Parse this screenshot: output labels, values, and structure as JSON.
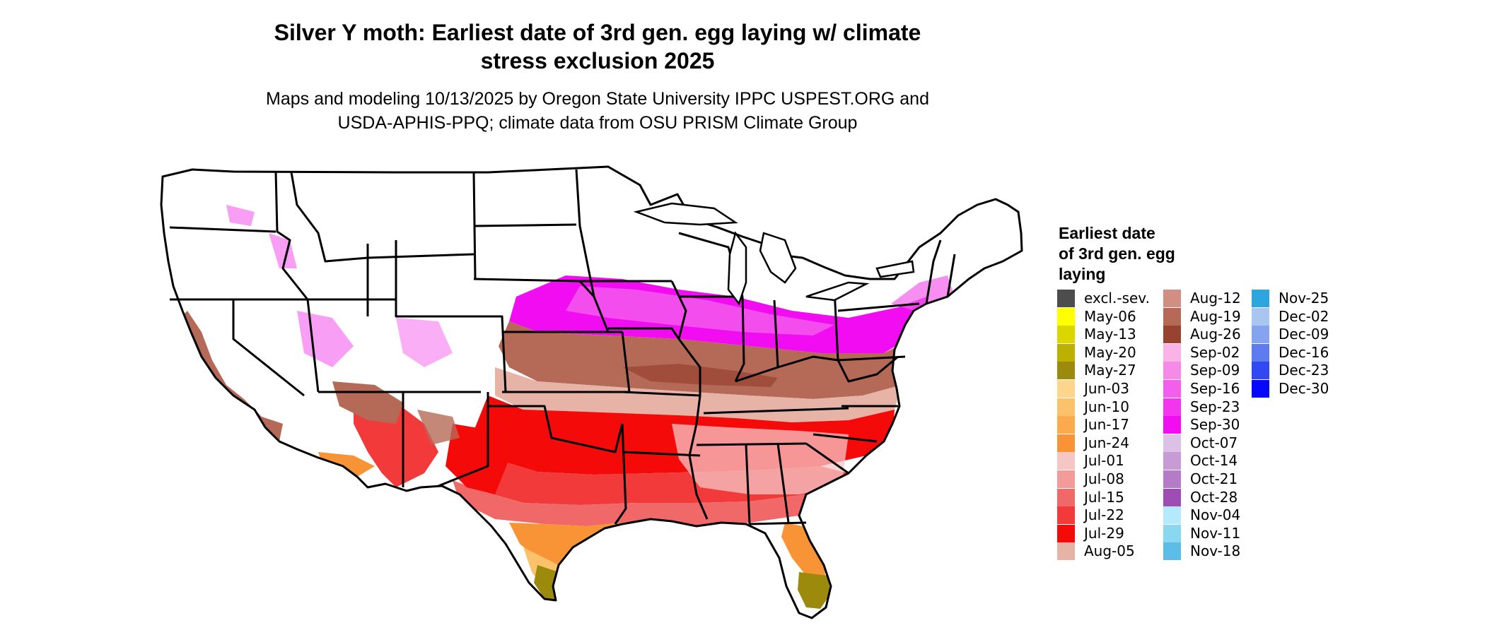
{
  "title_line1": "Silver Y moth: Earliest date of 3rd gen. egg laying w/ climate",
  "title_line2": "stress exclusion 2025",
  "subtitle_line1": "Maps and modeling 10/13/2025 by Oregon State University IPPC USPEST.ORG and",
  "subtitle_line2": "USDA-APHIS-PPQ; climate data from OSU PRISM Climate Group",
  "legend": {
    "title_line1": "Earliest date",
    "title_line2": "of 3rd gen. egg",
    "title_line3": "laying",
    "columns": [
      [
        {
          "label": "excl.-sev.",
          "color": "#4d4d4d"
        },
        {
          "label": "May-06",
          "color": "#ffff00"
        },
        {
          "label": "May-13",
          "color": "#dcd600"
        },
        {
          "label": "May-20",
          "color": "#bcb000"
        },
        {
          "label": "May-27",
          "color": "#9b8a0b"
        },
        {
          "label": "Jun-03",
          "color": "#fdd58c"
        },
        {
          "label": "Jun-10",
          "color": "#fcc16b"
        },
        {
          "label": "Jun-17",
          "color": "#fbab4d"
        },
        {
          "label": "Jun-24",
          "color": "#f99436"
        },
        {
          "label": "Jul-01",
          "color": "#f6c6c6"
        },
        {
          "label": "Jul-08",
          "color": "#f39a9a"
        },
        {
          "label": "Jul-15",
          "color": "#f16868"
        },
        {
          "label": "Jul-22",
          "color": "#f23a3a"
        },
        {
          "label": "Jul-29",
          "color": "#f50a0a"
        },
        {
          "label": "Aug-05",
          "color": "#e6b3a6"
        }
      ],
      [
        {
          "label": "Aug-12",
          "color": "#d08f82"
        },
        {
          "label": "Aug-19",
          "color": "#b56a58"
        },
        {
          "label": "Aug-26",
          "color": "#97432f"
        },
        {
          "label": "Sep-02",
          "color": "#f9b3e6"
        },
        {
          "label": "Sep-09",
          "color": "#f68ae9"
        },
        {
          "label": "Sep-16",
          "color": "#f35eec"
        },
        {
          "label": "Sep-23",
          "color": "#f534f0"
        },
        {
          "label": "Sep-30",
          "color": "#f20cf2"
        },
        {
          "label": "Oct-07",
          "color": "#dcc0e6"
        },
        {
          "label": "Oct-14",
          "color": "#c89ad6"
        },
        {
          "label": "Oct-21",
          "color": "#b57ac8"
        },
        {
          "label": "Oct-28",
          "color": "#9d4db4"
        },
        {
          "label": "Nov-04",
          "color": "#b5eafc"
        },
        {
          "label": "Nov-11",
          "color": "#8ad7f2"
        },
        {
          "label": "Nov-18",
          "color": "#5cbde8"
        }
      ],
      [
        {
          "label": "Nov-25",
          "color": "#2ea5df"
        },
        {
          "label": "Dec-02",
          "color": "#a8c6ef"
        },
        {
          "label": "Dec-09",
          "color": "#85a3ef"
        },
        {
          "label": "Dec-16",
          "color": "#5e7cf0"
        },
        {
          "label": "Dec-23",
          "color": "#3049f3"
        },
        {
          "label": "Dec-30",
          "color": "#0707fb"
        }
      ]
    ]
  }
}
